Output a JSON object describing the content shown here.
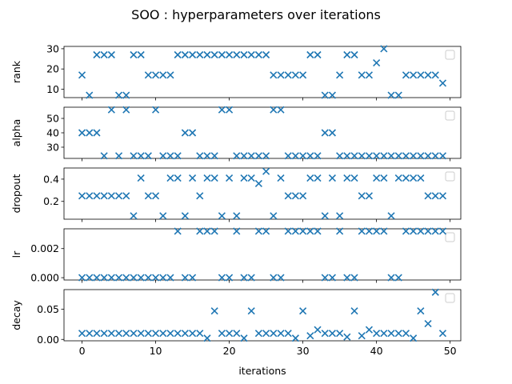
{
  "figure": {
    "title": "SOO : hyperparameters over iterations",
    "marker_color": "#1f77b4",
    "marker": "x"
  },
  "chart_data": [
    {
      "type": "scatter",
      "ylabel": "rank",
      "xlabel": "",
      "x_ticks_labeled": false,
      "xlim": [
        -2.45,
        51.45
      ],
      "ylim": [
        5.85,
        31.15
      ],
      "yticks": [
        10,
        20,
        30
      ],
      "ytick_labels": [
        "10",
        "20",
        "30"
      ],
      "legend": "empty box, upper right",
      "x": [
        0,
        1,
        2,
        3,
        4,
        5,
        6,
        7,
        8,
        9,
        10,
        11,
        12,
        13,
        14,
        15,
        16,
        17,
        18,
        19,
        20,
        21,
        22,
        23,
        24,
        25,
        26,
        27,
        28,
        29,
        30,
        31,
        32,
        33,
        34,
        35,
        36,
        37,
        38,
        39,
        40,
        41,
        42,
        43,
        44,
        45,
        46,
        47,
        48,
        49
      ],
      "y": [
        17,
        7,
        27,
        27,
        27,
        7,
        7,
        27,
        27,
        17,
        17,
        17,
        17,
        27,
        27,
        27,
        27,
        27,
        27,
        27,
        27,
        27,
        27,
        27,
        27,
        27,
        17,
        17,
        17,
        17,
        17,
        27,
        27,
        7,
        7,
        17,
        27,
        27,
        17,
        17,
        23,
        30,
        7,
        7,
        17,
        17,
        17,
        17,
        17,
        13
      ]
    },
    {
      "type": "scatter",
      "ylabel": "alpha",
      "xlabel": "",
      "x_ticks_labeled": false,
      "xlim": [
        -2.45,
        51.45
      ],
      "ylim": [
        22.2,
        57.8
      ],
      "yticks": [
        30,
        40,
        50
      ],
      "ytick_labels": [
        "30",
        "40",
        "50"
      ],
      "legend": "empty box, upper right",
      "x": [
        0,
        1,
        2,
        3,
        4,
        5,
        6,
        7,
        8,
        9,
        10,
        11,
        12,
        13,
        14,
        15,
        16,
        17,
        18,
        19,
        20,
        21,
        22,
        23,
        24,
        25,
        26,
        27,
        28,
        29,
        30,
        31,
        32,
        33,
        34,
        35,
        36,
        37,
        38,
        39,
        40,
        41,
        42,
        43,
        44,
        45,
        46,
        47,
        48,
        49
      ],
      "y": [
        40,
        40,
        40,
        24,
        56,
        24,
        56,
        24,
        24,
        24,
        56,
        24,
        24,
        24,
        40,
        40,
        24,
        24,
        24,
        56,
        56,
        24,
        24,
        24,
        24,
        24,
        56,
        56,
        24,
        24,
        24,
        24,
        24,
        40,
        40,
        24,
        24,
        24,
        24,
        24,
        24,
        24,
        24,
        24,
        24,
        24,
        24,
        24,
        24,
        24
      ]
    },
    {
      "type": "scatter",
      "ylabel": "dropout",
      "xlabel": "",
      "x_ticks_labeled": false,
      "xlim": [
        -2.45,
        51.45
      ],
      "ylim": [
        0.04,
        0.5
      ],
      "yticks": [
        0.2,
        0.4
      ],
      "ytick_labels": [
        "0.2",
        "0.4"
      ],
      "legend": "empty box, upper right",
      "x": [
        0,
        1,
        2,
        3,
        4,
        5,
        6,
        7,
        8,
        9,
        10,
        11,
        12,
        13,
        14,
        15,
        16,
        17,
        18,
        19,
        20,
        21,
        22,
        23,
        24,
        25,
        26,
        27,
        28,
        29,
        30,
        31,
        32,
        33,
        34,
        35,
        36,
        37,
        38,
        39,
        40,
        41,
        42,
        43,
        44,
        45,
        46,
        47,
        48,
        49
      ],
      "y": [
        0.25,
        0.25,
        0.25,
        0.25,
        0.25,
        0.25,
        0.25,
        0.07,
        0.41,
        0.25,
        0.25,
        0.07,
        0.41,
        0.41,
        0.07,
        0.41,
        0.25,
        0.41,
        0.41,
        0.07,
        0.41,
        0.07,
        0.41,
        0.41,
        0.36,
        0.47,
        0.07,
        0.41,
        0.25,
        0.25,
        0.25,
        0.41,
        0.41,
        0.07,
        0.41,
        0.07,
        0.41,
        0.41,
        0.25,
        0.25,
        0.41,
        0.41,
        0.07,
        0.41,
        0.41,
        0.41,
        0.41,
        0.25,
        0.25,
        0.25
      ]
    },
    {
      "type": "scatter",
      "ylabel": "lr",
      "xlabel": "",
      "x_ticks_labeled": false,
      "xlim": [
        -2.45,
        51.45
      ],
      "ylim": [
        -0.00016,
        0.00336
      ],
      "yticks": [
        0,
        0.002
      ],
      "ytick_labels": [
        "0.000",
        "0.002"
      ],
      "legend": "empty box, upper right",
      "x": [
        0,
        1,
        2,
        3,
        4,
        5,
        6,
        7,
        8,
        9,
        10,
        11,
        12,
        13,
        14,
        15,
        16,
        17,
        18,
        19,
        20,
        21,
        22,
        23,
        24,
        25,
        26,
        27,
        28,
        29,
        30,
        31,
        32,
        33,
        34,
        35,
        36,
        37,
        38,
        39,
        40,
        41,
        42,
        43,
        44,
        45,
        46,
        47,
        48,
        49
      ],
      "y": [
        0.0,
        0.0,
        0.0,
        0.0,
        0.0,
        0.0,
        0.0,
        0.0,
        0.0,
        0.0,
        0.0,
        0.0,
        0.0,
        0.0032,
        0.0,
        0.0,
        0.0032,
        0.0032,
        0.0032,
        0.0,
        0.0,
        0.0032,
        0.0,
        0.0,
        0.0032,
        0.0032,
        0.0,
        0.0,
        0.0032,
        0.0032,
        0.0032,
        0.0032,
        0.0032,
        0.0,
        0.0,
        0.0032,
        0.0,
        0.0,
        0.0032,
        0.0032,
        0.0032,
        0.0032,
        0.0,
        0.0,
        0.0032,
        0.0032,
        0.0032,
        0.0032,
        0.0032,
        0.0032
      ]
    },
    {
      "type": "scatter",
      "ylabel": "decay",
      "xlabel": "iterations",
      "x_ticks_labeled": true,
      "xlim": [
        -2.45,
        51.45
      ],
      "ylim": [
        -0.0023,
        0.0823
      ],
      "xticks": [
        0,
        10,
        20,
        30,
        40,
        50
      ],
      "xtick_labels": [
        "0",
        "10",
        "20",
        "30",
        "40",
        "50"
      ],
      "yticks": [
        0,
        0.05
      ],
      "ytick_labels": [
        "0.00",
        "0.05"
      ],
      "legend": "empty box, upper right",
      "x": [
        0,
        1,
        2,
        3,
        4,
        5,
        6,
        7,
        8,
        9,
        10,
        11,
        12,
        13,
        14,
        15,
        16,
        17,
        18,
        19,
        20,
        21,
        22,
        23,
        24,
        25,
        26,
        27,
        28,
        29,
        30,
        31,
        32,
        33,
        34,
        35,
        36,
        37,
        38,
        39,
        40,
        41,
        42,
        43,
        44,
        45,
        46,
        47,
        48,
        49
      ],
      "y": [
        0.01,
        0.01,
        0.01,
        0.01,
        0.01,
        0.01,
        0.01,
        0.01,
        0.01,
        0.01,
        0.01,
        0.01,
        0.01,
        0.01,
        0.01,
        0.01,
        0.01,
        0.002,
        0.047,
        0.01,
        0.01,
        0.01,
        0.002,
        0.047,
        0.01,
        0.01,
        0.01,
        0.01,
        0.01,
        0.002,
        0.047,
        0.006,
        0.016,
        0.01,
        0.01,
        0.01,
        0.004,
        0.047,
        0.006,
        0.016,
        0.01,
        0.01,
        0.01,
        0.01,
        0.01,
        0.002,
        0.047,
        0.026,
        0.078,
        0.01
      ]
    }
  ]
}
